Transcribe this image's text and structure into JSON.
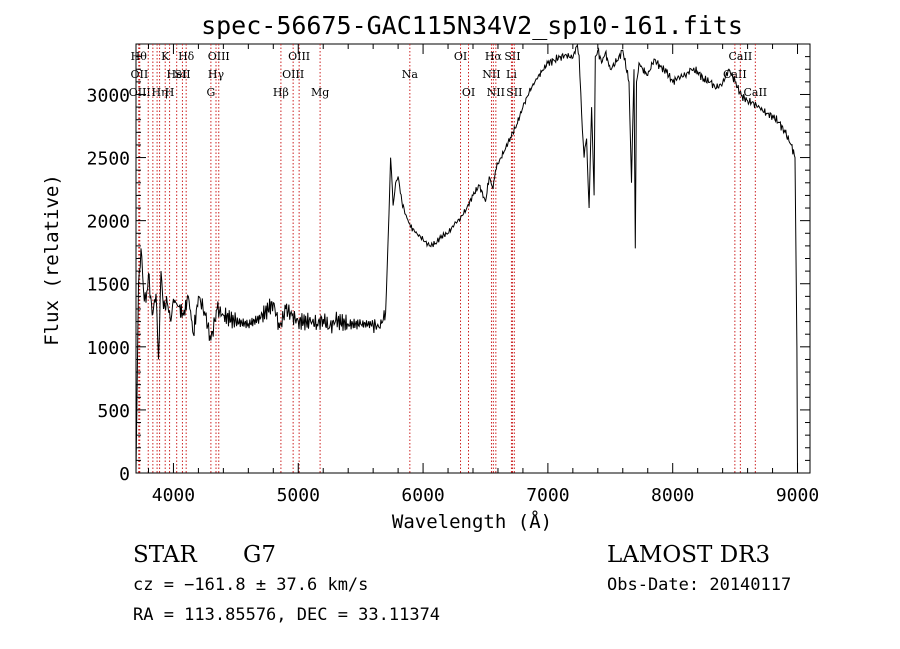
{
  "chart_data": {
    "type": "line",
    "title": "spec-56675-GAC115N34V2_sp10-161.fits",
    "xlabel": "Wavelength (Å)",
    "ylabel": "Flux (relative)",
    "xlim": [
      3700,
      9100
    ],
    "ylim": [
      0,
      3400
    ],
    "x_ticks": [
      4000,
      5000,
      6000,
      7000,
      8000,
      9000
    ],
    "y_ticks": [
      0,
      500,
      1000,
      1500,
      2000,
      2500,
      3000
    ],
    "grid": false,
    "line_color": "#000000",
    "marker_color": "#cc2222",
    "series": [
      {
        "x": [
          3700,
          3710,
          3720,
          3740,
          3760,
          3780,
          3800,
          3830,
          3860,
          3880,
          3900,
          3920,
          3950,
          3980,
          4000,
          4040,
          4080,
          4120,
          4160,
          4200,
          4250,
          4300,
          4350,
          4400,
          4500,
          4600,
          4700,
          4800,
          4850,
          4900,
          4950,
          5000,
          5100,
          5150,
          5200,
          5250,
          5300,
          5400,
          5500,
          5600,
          5650,
          5700,
          5720,
          5740,
          5760,
          5780,
          5800,
          5830,
          5860,
          5900,
          5950,
          6000,
          6050,
          6100,
          6150,
          6200,
          6250,
          6300,
          6350,
          6400,
          6450,
          6500,
          6530,
          6560,
          6580,
          6600,
          6650,
          6700,
          6750,
          6800,
          6850,
          6900,
          6950,
          7000,
          7050,
          7100,
          7150,
          7200,
          7230,
          7250,
          7270,
          7290,
          7310,
          7330,
          7350,
          7370,
          7380,
          7400,
          7430,
          7460,
          7500,
          7550,
          7600,
          7650,
          7670,
          7690,
          7700,
          7710,
          7730,
          7760,
          7800,
          7850,
          7900,
          7950,
          8000,
          8050,
          8100,
          8150,
          8200,
          8250,
          8300,
          8350,
          8400,
          8450,
          8500,
          8550,
          8600,
          8650,
          8700,
          8750,
          8800,
          8850,
          8900,
          8950,
          8980,
          8995,
          9000
        ],
        "y": [
          0,
          720,
          1500,
          1780,
          1450,
          1350,
          1580,
          1250,
          1420,
          900,
          1600,
          1300,
          1350,
          1200,
          1380,
          1320,
          1250,
          1400,
          1100,
          1400,
          1280,
          1050,
          1300,
          1250,
          1200,
          1180,
          1230,
          1350,
          1150,
          1300,
          1250,
          1200,
          1200,
          1180,
          1220,
          1150,
          1210,
          1180,
          1180,
          1180,
          1150,
          1270,
          1850,
          2500,
          2120,
          2300,
          2350,
          2150,
          2050,
          1950,
          1900,
          1850,
          1800,
          1820,
          1880,
          1900,
          1970,
          2020,
          2100,
          2200,
          2280,
          2150,
          2350,
          2250,
          2400,
          2450,
          2550,
          2660,
          2760,
          2900,
          3020,
          3110,
          3180,
          3250,
          3270,
          3300,
          3310,
          3290,
          3380,
          3310,
          2850,
          2500,
          2650,
          2100,
          2900,
          2200,
          3300,
          3350,
          3250,
          3330,
          3200,
          3260,
          3350,
          3100,
          2300,
          3200,
          1780,
          3100,
          3250,
          3200,
          3150,
          3280,
          3220,
          3180,
          3100,
          3140,
          3150,
          3200,
          3180,
          3120,
          3100,
          3050,
          3090,
          3200,
          3100,
          2990,
          2950,
          2930,
          2890,
          2850,
          2830,
          2780,
          2700,
          2600,
          2500,
          1000,
          0
        ]
      }
    ],
    "line_markers": [
      {
        "x": 3722,
        "label": "Hθ",
        "row": 0
      },
      {
        "x": 3727,
        "label": "OII",
        "row": 1
      },
      {
        "x": 3730,
        "label": "OIII",
        "row": 2
      },
      {
        "x": 3798,
        "label": "",
        "row": 0
      },
      {
        "x": 3835,
        "label": "",
        "row": 0
      },
      {
        "x": 3869,
        "label": "",
        "row": 1
      },
      {
        "x": 3889,
        "label": "Hη",
        "row": 2
      },
      {
        "x": 3934,
        "label": "K",
        "row": 0
      },
      {
        "x": 3969,
        "label": "H",
        "row": 2
      },
      {
        "x": 4026,
        "label": "HeI",
        "row": 1
      },
      {
        "x": 4072,
        "label": "SII",
        "row": 1
      },
      {
        "x": 4102,
        "label": "Hδ",
        "row": 0
      },
      {
        "x": 4300,
        "label": "G",
        "row": 2
      },
      {
        "x": 4341,
        "label": "Hγ",
        "row": 1
      },
      {
        "x": 4363,
        "label": "OIII",
        "row": 0
      },
      {
        "x": 4861,
        "label": "Hβ",
        "row": 2
      },
      {
        "x": 4959,
        "label": "OIII",
        "row": 1
      },
      {
        "x": 5007,
        "label": "OIII",
        "row": 0
      },
      {
        "x": 5175,
        "label": "Mg",
        "row": 2
      },
      {
        "x": 5894,
        "label": "Na",
        "row": 1
      },
      {
        "x": 6300,
        "label": "OI",
        "row": 0
      },
      {
        "x": 6364,
        "label": "OI",
        "row": 2
      },
      {
        "x": 6548,
        "label": "NII",
        "row": 1
      },
      {
        "x": 6563,
        "label": "Hα",
        "row": 0
      },
      {
        "x": 6583,
        "label": "NII",
        "row": 2
      },
      {
        "x": 6708,
        "label": "Li",
        "row": 1
      },
      {
        "x": 6716,
        "label": "SII",
        "row": 0
      },
      {
        "x": 6731,
        "label": "SII",
        "row": 2
      },
      {
        "x": 8498,
        "label": "CaII",
        "row": 1
      },
      {
        "x": 8542,
        "label": "CaII",
        "row": 0
      },
      {
        "x": 8662,
        "label": "CaII",
        "row": 2
      }
    ]
  },
  "footer": {
    "object_class": "STAR",
    "subclass": "G7",
    "redshift": "cz = −161.8 ± 37.6 km/s",
    "coords": "RA = 113.85576, DEC =  33.11374",
    "survey": "LAMOST DR3",
    "obs_date": "Obs-Date: 20140117"
  }
}
